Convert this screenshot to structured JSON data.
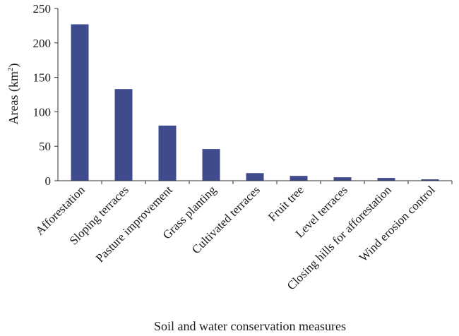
{
  "chart_data": {
    "type": "bar",
    "title": "",
    "xlabel": "Soil and water conservation measures",
    "ylabel_main": "Areas (km",
    "ylabel_sup": "2",
    "ylabel_close": ")",
    "ylim": [
      0,
      250
    ],
    "yticks": [
      "0",
      "50",
      "100",
      "150",
      "200",
      "250"
    ],
    "categories": [
      "Afforestation",
      "Sloping terraces",
      "Pasture improvement",
      "Grass planting",
      "Cultivated terraces",
      "Fruit tree",
      "Level terraces",
      "Closing hills for afforestation",
      "Wind erosion control"
    ],
    "values": [
      227,
      133,
      80,
      46,
      11,
      7,
      5,
      4,
      2
    ],
    "bar_color": "#3f4b8c",
    "grid": false,
    "legend": "none"
  }
}
